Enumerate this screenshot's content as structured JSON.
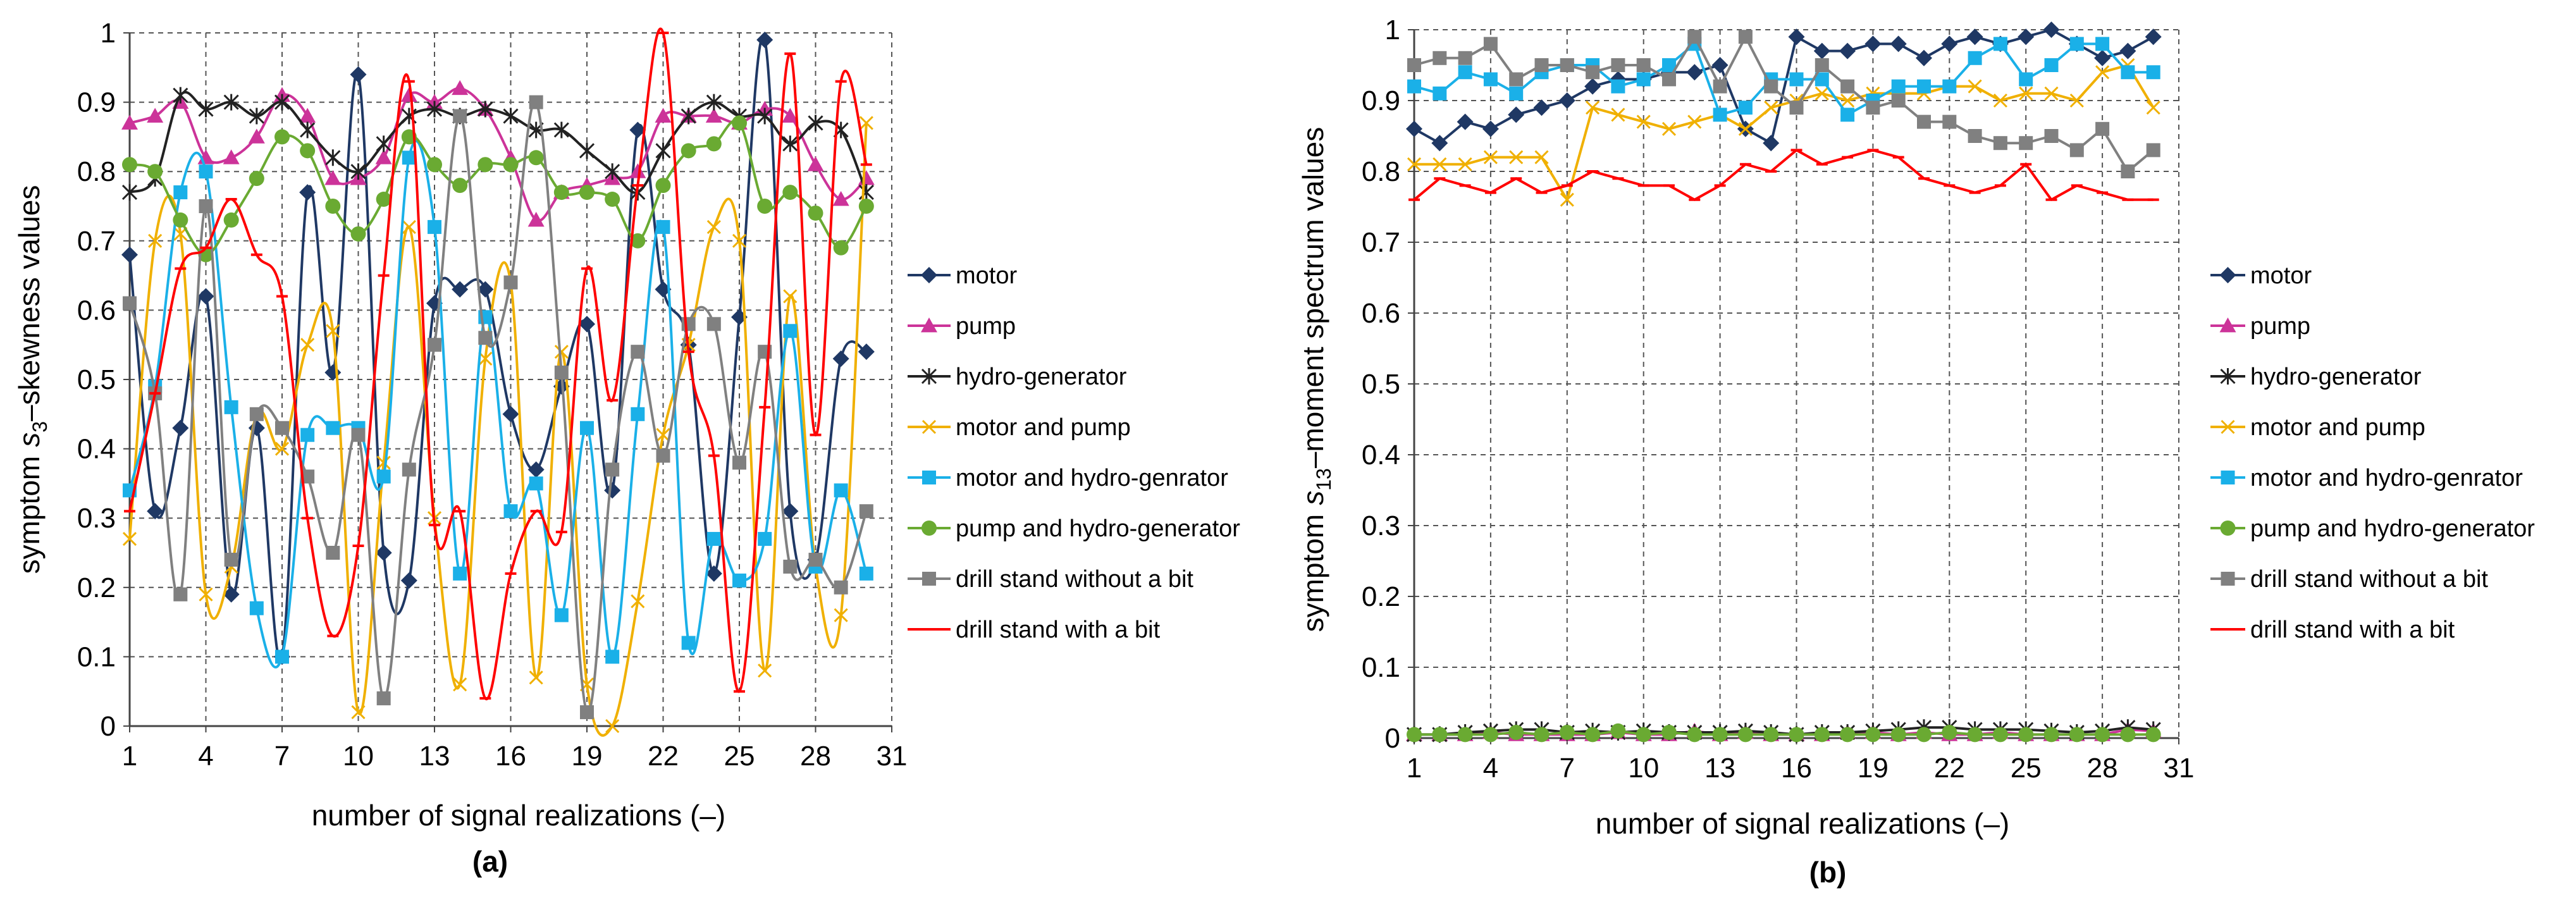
{
  "chart_data": [
    {
      "type": "line",
      "panel_label": "(a)",
      "xlabel": "number of signal realizations (–)",
      "ylabel_pre": "symptom",
      "ylabel_var": "s",
      "ylabel_sub": "3",
      "ylabel_post": "–skewness values",
      "xlim": [
        1,
        31
      ],
      "ylim": [
        0,
        1
      ],
      "x_ticks": [
        "1",
        "4",
        "7",
        "10",
        "13",
        "16",
        "19",
        "22",
        "25",
        "28",
        "31"
      ],
      "y_ticks": [
        "0",
        "0.1",
        "0.2",
        "0.3",
        "0.4",
        "0.5",
        "0.6",
        "0.7",
        "0.8",
        "0.9",
        "1"
      ],
      "x": [
        1,
        2,
        3,
        4,
        5,
        6,
        7,
        8,
        9,
        10,
        11,
        12,
        13,
        14,
        15,
        16,
        17,
        18,
        19,
        20,
        21,
        22,
        23,
        24,
        25,
        26,
        27,
        28,
        29,
        30
      ],
      "series": [
        {
          "name": "motor",
          "color": "#1f3864",
          "marker": "diamond",
          "values": [
            0.68,
            0.31,
            0.43,
            0.62,
            0.19,
            0.43,
            0.1,
            0.77,
            0.51,
            0.94,
            0.25,
            0.21,
            0.61,
            0.63,
            0.63,
            0.45,
            0.37,
            0.49,
            0.58,
            0.34,
            0.86,
            0.63,
            0.55,
            0.22,
            0.59,
            0.99,
            0.31,
            0.24,
            0.53,
            0.54
          ]
        },
        {
          "name": "pump",
          "color": "#cc3399",
          "marker": "triangle",
          "values": [
            0.87,
            0.88,
            0.9,
            0.82,
            0.82,
            0.85,
            0.91,
            0.88,
            0.79,
            0.79,
            0.82,
            0.91,
            0.9,
            0.92,
            0.89,
            0.82,
            0.73,
            0.77,
            0.78,
            0.79,
            0.8,
            0.88,
            0.88,
            0.88,
            0.87,
            0.89,
            0.88,
            0.81,
            0.76,
            0.79
          ]
        },
        {
          "name": "hydro-generator",
          "color": "#222222",
          "marker": "star",
          "values": [
            0.77,
            0.79,
            0.91,
            0.89,
            0.9,
            0.88,
            0.9,
            0.86,
            0.82,
            0.8,
            0.84,
            0.88,
            0.89,
            0.88,
            0.89,
            0.88,
            0.86,
            0.86,
            0.83,
            0.8,
            0.77,
            0.83,
            0.88,
            0.9,
            0.88,
            0.88,
            0.84,
            0.87,
            0.86,
            0.77
          ]
        },
        {
          "name": "motor and pump",
          "color": "#f0b000",
          "marker": "x",
          "values": [
            0.27,
            0.7,
            0.71,
            0.19,
            0.23,
            0.45,
            0.4,
            0.55,
            0.57,
            0.02,
            0.38,
            0.72,
            0.3,
            0.06,
            0.53,
            0.64,
            0.07,
            0.54,
            0.06,
            0.0,
            0.18,
            0.42,
            0.55,
            0.72,
            0.7,
            0.08,
            0.62,
            0.23,
            0.16,
            0.87
          ]
        },
        {
          "name": "motor and hydro-genrator",
          "color": "#1ab0e8",
          "marker": "square",
          "values": [
            0.34,
            0.49,
            0.77,
            0.8,
            0.46,
            0.17,
            0.1,
            0.42,
            0.43,
            0.43,
            0.36,
            0.82,
            0.72,
            0.22,
            0.59,
            0.31,
            0.35,
            0.16,
            0.43,
            0.1,
            0.45,
            0.72,
            0.12,
            0.27,
            0.21,
            0.27,
            0.57,
            0.23,
            0.34,
            0.22
          ]
        },
        {
          "name": "pump and hydro-generator",
          "color": "#6aaa32",
          "marker": "circle",
          "values": [
            0.81,
            0.8,
            0.73,
            0.68,
            0.73,
            0.79,
            0.85,
            0.83,
            0.75,
            0.71,
            0.76,
            0.85,
            0.81,
            0.78,
            0.81,
            0.81,
            0.82,
            0.77,
            0.77,
            0.76,
            0.7,
            0.78,
            0.83,
            0.84,
            0.87,
            0.75,
            0.77,
            0.74,
            0.69,
            0.75
          ]
        },
        {
          "name": "drill stand without a bit",
          "color": "#808080",
          "marker": "square",
          "values": [
            0.61,
            0.48,
            0.19,
            0.75,
            0.24,
            0.45,
            0.43,
            0.36,
            0.25,
            0.42,
            0.04,
            0.37,
            0.55,
            0.88,
            0.56,
            0.64,
            0.9,
            0.51,
            0.02,
            0.37,
            0.54,
            0.39,
            0.58,
            0.58,
            0.38,
            0.54,
            0.23,
            0.24,
            0.2,
            0.31
          ]
        },
        {
          "name": "drill stand with a bit",
          "color": "#ff0000",
          "marker": "dash",
          "values": [
            0.31,
            0.48,
            0.66,
            0.69,
            0.76,
            0.68,
            0.62,
            0.3,
            0.13,
            0.26,
            0.65,
            0.93,
            0.29,
            0.31,
            0.04,
            0.22,
            0.31,
            0.28,
            0.66,
            0.47,
            0.78,
            1.0,
            0.54,
            0.39,
            0.05,
            0.46,
            0.97,
            0.42,
            0.93,
            0.81
          ]
        }
      ]
    },
    {
      "type": "line",
      "panel_label": "(b)",
      "xlabel": "number of signal realizations (–)",
      "ylabel_pre": "symptom",
      "ylabel_var": "s",
      "ylabel_sub": "13",
      "ylabel_post": "–moment spectrum values",
      "xlim": [
        1,
        31
      ],
      "ylim": [
        0,
        1
      ],
      "x_ticks": [
        "1",
        "4",
        "7",
        "10",
        "13",
        "16",
        "19",
        "22",
        "25",
        "28",
        "31"
      ],
      "y_ticks": [
        "0",
        "0.1",
        "0.2",
        "0.3",
        "0.4",
        "0.5",
        "0.6",
        "0.7",
        "0.8",
        "0.9",
        "1"
      ],
      "x": [
        1,
        2,
        3,
        4,
        5,
        6,
        7,
        8,
        9,
        10,
        11,
        12,
        13,
        14,
        15,
        16,
        17,
        18,
        19,
        20,
        21,
        22,
        23,
        24,
        25,
        26,
        27,
        28,
        29,
        30
      ],
      "series": [
        {
          "name": "motor",
          "color": "#1f3864",
          "marker": "diamond",
          "values": [
            0.86,
            0.84,
            0.87,
            0.86,
            0.88,
            0.89,
            0.9,
            0.92,
            0.93,
            0.93,
            0.94,
            0.94,
            0.95,
            0.86,
            0.84,
            0.99,
            0.97,
            0.97,
            0.98,
            0.98,
            0.96,
            0.98,
            0.99,
            0.98,
            0.99,
            1.0,
            0.98,
            0.96,
            0.97,
            0.99
          ]
        },
        {
          "name": "pump",
          "color": "#cc3399",
          "marker": "triangle",
          "values": [
            0.005,
            0.005,
            0.005,
            0.008,
            0.005,
            0.005,
            0.005,
            0.005,
            0.008,
            0.005,
            0.005,
            0.01,
            0.005,
            0.008,
            0.005,
            0.005,
            0.005,
            0.008,
            0.008,
            0.005,
            0.008,
            0.005,
            0.005,
            0.008,
            0.005,
            0.005,
            0.005,
            0.005,
            0.012,
            0.01
          ]
        },
        {
          "name": "hydro-generator",
          "color": "#222222",
          "marker": "star",
          "values": [
            0.005,
            0.005,
            0.008,
            0.01,
            0.012,
            0.012,
            0.008,
            0.01,
            0.008,
            0.01,
            0.008,
            0.008,
            0.008,
            0.01,
            0.008,
            0.005,
            0.008,
            0.008,
            0.01,
            0.012,
            0.015,
            0.015,
            0.012,
            0.012,
            0.012,
            0.01,
            0.008,
            0.01,
            0.015,
            0.012
          ]
        },
        {
          "name": "motor and pump",
          "color": "#f0b000",
          "marker": "x",
          "values": [
            0.81,
            0.81,
            0.81,
            0.82,
            0.82,
            0.82,
            0.76,
            0.89,
            0.88,
            0.87,
            0.86,
            0.87,
            0.88,
            0.86,
            0.89,
            0.9,
            0.91,
            0.9,
            0.91,
            0.91,
            0.91,
            0.92,
            0.92,
            0.9,
            0.91,
            0.91,
            0.9,
            0.94,
            0.95,
            0.89
          ]
        },
        {
          "name": "motor and hydro-genrator",
          "color": "#1ab0e8",
          "marker": "square",
          "values": [
            0.92,
            0.91,
            0.94,
            0.93,
            0.91,
            0.94,
            0.95,
            0.95,
            0.92,
            0.93,
            0.95,
            0.98,
            0.88,
            0.89,
            0.93,
            0.93,
            0.93,
            0.88,
            0.9,
            0.92,
            0.92,
            0.92,
            0.96,
            0.98,
            0.93,
            0.95,
            0.98,
            0.98,
            0.94,
            0.94
          ]
        },
        {
          "name": "pump and hydro-generator",
          "color": "#6aaa32",
          "marker": "circle",
          "values": [
            0.005,
            0.005,
            0.005,
            0.005,
            0.008,
            0.005,
            0.008,
            0.005,
            0.01,
            0.005,
            0.008,
            0.005,
            0.005,
            0.005,
            0.005,
            0.005,
            0.005,
            0.005,
            0.005,
            0.005,
            0.005,
            0.008,
            0.005,
            0.005,
            0.005,
            0.005,
            0.005,
            0.005,
            0.005,
            0.005
          ]
        },
        {
          "name": "drill stand without a bit",
          "color": "#808080",
          "marker": "square",
          "values": [
            0.95,
            0.96,
            0.96,
            0.98,
            0.93,
            0.95,
            0.95,
            0.94,
            0.95,
            0.95,
            0.93,
            0.99,
            0.92,
            0.99,
            0.92,
            0.89,
            0.95,
            0.92,
            0.89,
            0.9,
            0.87,
            0.87,
            0.85,
            0.84,
            0.84,
            0.85,
            0.83,
            0.86,
            0.8,
            0.83
          ]
        },
        {
          "name": "drill stand with a bit",
          "color": "#ff0000",
          "marker": "dash",
          "values": [
            0.76,
            0.79,
            0.78,
            0.77,
            0.79,
            0.77,
            0.78,
            0.8,
            0.79,
            0.78,
            0.78,
            0.76,
            0.78,
            0.81,
            0.8,
            0.83,
            0.81,
            0.82,
            0.83,
            0.82,
            0.79,
            0.78,
            0.77,
            0.78,
            0.81,
            0.76,
            0.78,
            0.77,
            0.76,
            0.76
          ]
        }
      ]
    }
  ]
}
